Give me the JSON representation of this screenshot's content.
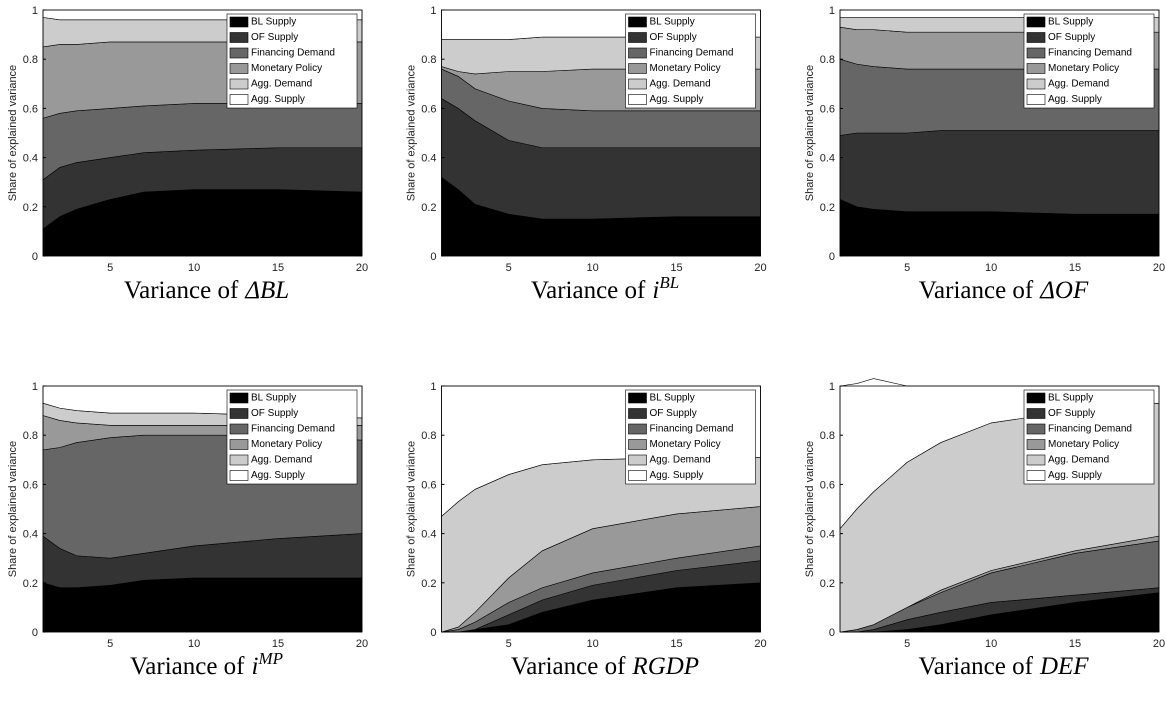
{
  "chart_data": [
    {
      "type": "area",
      "title": "Variance of",
      "title_math": "ΔBL",
      "ylabel": "Share of explained variance",
      "x": [
        1,
        2,
        3,
        5,
        7,
        10,
        15,
        20
      ],
      "xlim": [
        1,
        20
      ],
      "ylim": [
        0,
        1
      ],
      "xticks": [
        5,
        10,
        15,
        20
      ],
      "yticks": [
        0,
        0.2,
        0.4,
        0.6,
        0.8,
        1
      ],
      "stacked": true,
      "legend": "upper right",
      "series": [
        {
          "name": "BL Supply",
          "color": "#000000",
          "values": [
            0.11,
            0.16,
            0.19,
            0.23,
            0.26,
            0.27,
            0.27,
            0.26
          ]
        },
        {
          "name": "OF Supply",
          "color": "#333333",
          "values": [
            0.2,
            0.2,
            0.19,
            0.17,
            0.16,
            0.16,
            0.17,
            0.18
          ]
        },
        {
          "name": "Financing Demand",
          "color": "#666666",
          "values": [
            0.25,
            0.22,
            0.21,
            0.2,
            0.19,
            0.19,
            0.18,
            0.18
          ]
        },
        {
          "name": "Monetary Policy",
          "color": "#999999",
          "values": [
            0.29,
            0.28,
            0.27,
            0.27,
            0.26,
            0.25,
            0.25,
            0.25
          ]
        },
        {
          "name": "Agg. Demand",
          "color": "#cccccc",
          "values": [
            0.12,
            0.1,
            0.1,
            0.09,
            0.09,
            0.09,
            0.09,
            0.09
          ]
        },
        {
          "name": "Agg. Supply",
          "color": "#ffffff",
          "values": [
            0.03,
            0.04,
            0.04,
            0.04,
            0.04,
            0.04,
            0.04,
            0.04
          ]
        }
      ]
    },
    {
      "type": "area",
      "title": "Variance of",
      "title_math": "i",
      "title_sup": "BL",
      "ylabel": "Share of explained variance",
      "x": [
        1,
        2,
        3,
        5,
        7,
        10,
        15,
        20
      ],
      "xlim": [
        1,
        20
      ],
      "ylim": [
        0,
        1
      ],
      "xticks": [
        5,
        10,
        15,
        20
      ],
      "yticks": [
        0,
        0.2,
        0.4,
        0.6,
        0.8,
        1
      ],
      "stacked": true,
      "legend": "upper right",
      "series": [
        {
          "name": "BL Supply",
          "color": "#000000",
          "values": [
            0.32,
            0.27,
            0.21,
            0.17,
            0.15,
            0.15,
            0.16,
            0.16
          ]
        },
        {
          "name": "OF Supply",
          "color": "#333333",
          "values": [
            0.32,
            0.33,
            0.34,
            0.3,
            0.29,
            0.29,
            0.28,
            0.28
          ]
        },
        {
          "name": "Financing Demand",
          "color": "#666666",
          "values": [
            0.12,
            0.13,
            0.13,
            0.16,
            0.16,
            0.15,
            0.15,
            0.15
          ]
        },
        {
          "name": "Monetary Policy",
          "color": "#999999",
          "values": [
            0.01,
            0.02,
            0.06,
            0.12,
            0.15,
            0.17,
            0.17,
            0.17
          ]
        },
        {
          "name": "Agg. Demand",
          "color": "#cccccc",
          "values": [
            0.11,
            0.13,
            0.14,
            0.13,
            0.14,
            0.13,
            0.13,
            0.13
          ]
        },
        {
          "name": "Agg. Supply",
          "color": "#ffffff",
          "values": [
            0.12,
            0.12,
            0.12,
            0.12,
            0.11,
            0.11,
            0.11,
            0.11
          ]
        }
      ]
    },
    {
      "type": "area",
      "title": "Variance of",
      "title_math": "ΔOF",
      "ylabel": "Share of explained variance",
      "x": [
        1,
        2,
        3,
        5,
        7,
        10,
        15,
        20
      ],
      "xlim": [
        1,
        20
      ],
      "ylim": [
        0,
        1
      ],
      "xticks": [
        5,
        10,
        15,
        20
      ],
      "yticks": [
        0,
        0.2,
        0.4,
        0.6,
        0.8,
        1
      ],
      "stacked": true,
      "legend": "upper right",
      "series": [
        {
          "name": "BL Supply",
          "color": "#000000",
          "values": [
            0.23,
            0.2,
            0.19,
            0.18,
            0.18,
            0.18,
            0.17,
            0.17
          ]
        },
        {
          "name": "OF Supply",
          "color": "#333333",
          "values": [
            0.26,
            0.3,
            0.31,
            0.32,
            0.33,
            0.33,
            0.34,
            0.34
          ]
        },
        {
          "name": "Financing Demand",
          "color": "#666666",
          "values": [
            0.31,
            0.28,
            0.27,
            0.26,
            0.25,
            0.25,
            0.25,
            0.25
          ]
        },
        {
          "name": "Monetary Policy",
          "color": "#999999",
          "values": [
            0.13,
            0.14,
            0.15,
            0.15,
            0.15,
            0.15,
            0.15,
            0.15
          ]
        },
        {
          "name": "Agg. Demand",
          "color": "#cccccc",
          "values": [
            0.04,
            0.05,
            0.05,
            0.06,
            0.06,
            0.06,
            0.06,
            0.06
          ]
        },
        {
          "name": "Agg. Supply",
          "color": "#ffffff",
          "values": [
            0.03,
            0.03,
            0.03,
            0.03,
            0.03,
            0.03,
            0.03,
            0.03
          ]
        }
      ]
    },
    {
      "type": "area",
      "title": "Variance of",
      "title_math": "i",
      "title_sup": "MP",
      "ylabel": "Share of explained variance",
      "x": [
        1,
        2,
        3,
        5,
        7,
        10,
        15,
        20
      ],
      "xlim": [
        1,
        20
      ],
      "ylim": [
        0,
        1
      ],
      "xticks": [
        5,
        10,
        15,
        20
      ],
      "yticks": [
        0,
        0.2,
        0.4,
        0.6,
        0.8,
        1
      ],
      "stacked": true,
      "legend": "upper right",
      "series": [
        {
          "name": "BL Supply",
          "color": "#000000",
          "values": [
            0.2,
            0.18,
            0.18,
            0.19,
            0.21,
            0.22,
            0.22,
            0.22
          ]
        },
        {
          "name": "OF Supply",
          "color": "#333333",
          "values": [
            0.19,
            0.16,
            0.13,
            0.11,
            0.11,
            0.13,
            0.16,
            0.18
          ]
        },
        {
          "name": "Financing Demand",
          "color": "#666666",
          "values": [
            0.35,
            0.41,
            0.46,
            0.49,
            0.48,
            0.45,
            0.42,
            0.38
          ]
        },
        {
          "name": "Monetary Policy",
          "color": "#999999",
          "values": [
            0.14,
            0.11,
            0.08,
            0.05,
            0.04,
            0.04,
            0.04,
            0.06
          ]
        },
        {
          "name": "Agg. Demand",
          "color": "#cccccc",
          "values": [
            0.05,
            0.05,
            0.05,
            0.05,
            0.05,
            0.05,
            0.04,
            0.03
          ]
        },
        {
          "name": "Agg. Supply",
          "color": "#ffffff",
          "values": [
            0.07,
            0.09,
            0.1,
            0.11,
            0.11,
            0.11,
            0.12,
            0.13
          ]
        }
      ]
    },
    {
      "type": "area",
      "title": "Variance of",
      "title_math": "RGDP",
      "ylabel": "Share of explained variance",
      "x": [
        1,
        2,
        3,
        5,
        7,
        10,
        15,
        20
      ],
      "xlim": [
        1,
        20
      ],
      "ylim": [
        0,
        1
      ],
      "xticks": [
        5,
        10,
        15,
        20
      ],
      "yticks": [
        0,
        0.2,
        0.4,
        0.6,
        0.8,
        1
      ],
      "stacked": true,
      "legend": "upper right",
      "series": [
        {
          "name": "BL Supply",
          "color": "#000000",
          "values": [
            0,
            0,
            0.01,
            0.03,
            0.08,
            0.13,
            0.18,
            0.2
          ]
        },
        {
          "name": "OF Supply",
          "color": "#333333",
          "values": [
            0,
            0,
            0,
            0.04,
            0.05,
            0.06,
            0.07,
            0.09
          ]
        },
        {
          "name": "Financing Demand",
          "color": "#666666",
          "values": [
            0,
            0.01,
            0.03,
            0.05,
            0.05,
            0.05,
            0.05,
            0.06
          ]
        },
        {
          "name": "Monetary Policy",
          "color": "#999999",
          "values": [
            0,
            0.01,
            0.04,
            0.1,
            0.15,
            0.18,
            0.18,
            0.16
          ]
        },
        {
          "name": "Agg. Demand",
          "color": "#cccccc",
          "values": [
            0.47,
            0.51,
            0.5,
            0.42,
            0.35,
            0.28,
            0.23,
            0.2
          ]
        },
        {
          "name": "Agg. Supply",
          "color": "#ffffff",
          "values": [
            0.53,
            0.47,
            0.42,
            0.36,
            0.32,
            0.3,
            0.29,
            0.29
          ]
        }
      ]
    },
    {
      "type": "area",
      "title": "Variance of",
      "title_math": "DEF",
      "ylabel": "Share of explained variance",
      "x": [
        1,
        2,
        3,
        5,
        7,
        10,
        15,
        20
      ],
      "xlim": [
        1,
        20
      ],
      "ylim": [
        0,
        1
      ],
      "xticks": [
        5,
        10,
        15,
        20
      ],
      "yticks": [
        0,
        0.2,
        0.4,
        0.6,
        0.8,
        1
      ],
      "stacked": true,
      "legend": "upper right",
      "series": [
        {
          "name": "BL Supply",
          "color": "#000000",
          "values": [
            0,
            0,
            0,
            0.01,
            0.03,
            0.07,
            0.12,
            0.16
          ]
        },
        {
          "name": "OF Supply",
          "color": "#333333",
          "values": [
            0,
            0,
            0.01,
            0.04,
            0.05,
            0.05,
            0.03,
            0.02
          ]
        },
        {
          "name": "Financing Demand",
          "color": "#666666",
          "values": [
            0,
            0.01,
            0.02,
            0.05,
            0.08,
            0.12,
            0.17,
            0.19
          ]
        },
        {
          "name": "Monetary Policy",
          "color": "#999999",
          "values": [
            0,
            0,
            0,
            0,
            0.01,
            0.01,
            0.01,
            0.02
          ]
        },
        {
          "name": "Agg. Demand",
          "color": "#cccccc",
          "values": [
            0.42,
            0.49,
            0.54,
            0.59,
            0.6,
            0.6,
            0.57,
            0.54
          ]
        },
        {
          "name": "Agg. Supply",
          "color": "#ffffff",
          "values": [
            0.58,
            0.51,
            0.46,
            0.31,
            0.23,
            0.15,
            0.1,
            0.07
          ]
        }
      ]
    }
  ]
}
